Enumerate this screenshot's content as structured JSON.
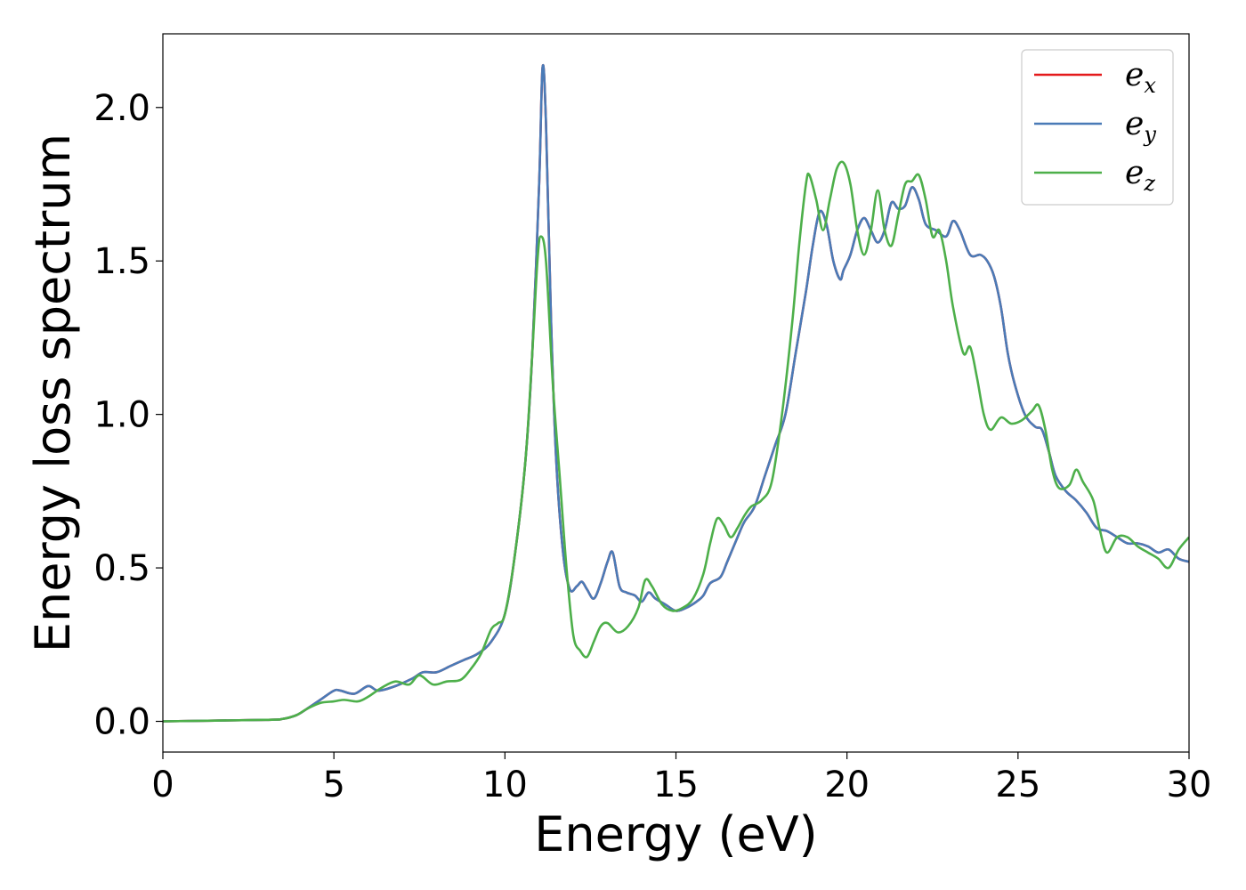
{
  "chart_data": {
    "type": "line",
    "title": "",
    "xlabel": "Energy (eV)",
    "ylabel": "Energy loss spectrum",
    "xlim": [
      0,
      30
    ],
    "ylim": [
      -0.1,
      2.24
    ],
    "xticks": [
      0,
      5,
      10,
      15,
      20,
      25,
      30
    ],
    "xtick_labels": [
      "0",
      "5",
      "10",
      "15",
      "20",
      "25",
      "30"
    ],
    "yticks": [
      0.0,
      0.5,
      1.0,
      1.5,
      2.0
    ],
    "ytick_labels": [
      "0.0",
      "0.5",
      "1.0",
      "1.5",
      "2.0"
    ],
    "grid": false,
    "legend_position": "top-right",
    "series": [
      {
        "name": "e_x",
        "label_main": "e",
        "label_sub": "x",
        "color": "#e41a1c",
        "x": [
          0,
          3.0,
          3.5,
          3.9,
          4.2,
          4.6,
          5.0,
          5.2,
          5.6,
          6.0,
          6.3,
          6.8,
          7.3,
          7.6,
          8.0,
          8.4,
          8.8,
          9.2,
          9.6,
          10.0,
          10.3,
          10.6,
          10.8,
          11.0,
          11.1,
          11.2,
          11.35,
          11.5,
          11.7,
          11.9,
          12.1,
          12.25,
          12.4,
          12.6,
          12.8,
          13.0,
          13.15,
          13.35,
          13.55,
          13.8,
          14.0,
          14.2,
          14.4,
          14.7,
          15.0,
          15.3,
          15.6,
          15.8,
          16.0,
          16.3,
          16.5,
          16.8,
          17.0,
          17.3,
          17.6,
          17.9,
          18.2,
          18.5,
          18.8,
          19.0,
          19.2,
          19.4,
          19.6,
          19.8,
          19.9,
          20.1,
          20.3,
          20.5,
          20.7,
          20.9,
          21.1,
          21.3,
          21.5,
          21.7,
          21.9,
          22.1,
          22.3,
          22.6,
          22.9,
          23.1,
          23.3,
          23.6,
          23.9,
          24.1,
          24.3,
          24.5,
          24.7,
          24.9,
          25.2,
          25.5,
          25.7,
          25.9,
          26.1,
          26.4,
          26.7,
          27.0,
          27.3,
          27.6,
          27.9,
          28.2,
          28.5,
          28.8,
          29.1,
          29.4,
          29.7,
          30.0
        ],
        "y": [
          0.0,
          0.005,
          0.008,
          0.02,
          0.04,
          0.07,
          0.1,
          0.1,
          0.09,
          0.115,
          0.1,
          0.115,
          0.14,
          0.16,
          0.16,
          0.18,
          0.2,
          0.22,
          0.26,
          0.35,
          0.55,
          0.85,
          1.2,
          1.75,
          2.13,
          1.95,
          1.3,
          0.85,
          0.55,
          0.43,
          0.44,
          0.455,
          0.43,
          0.4,
          0.45,
          0.52,
          0.55,
          0.44,
          0.42,
          0.41,
          0.39,
          0.42,
          0.4,
          0.38,
          0.36,
          0.37,
          0.39,
          0.41,
          0.45,
          0.47,
          0.52,
          0.6,
          0.65,
          0.7,
          0.8,
          0.9,
          1.0,
          1.2,
          1.4,
          1.55,
          1.66,
          1.62,
          1.5,
          1.44,
          1.47,
          1.52,
          1.6,
          1.64,
          1.6,
          1.56,
          1.6,
          1.69,
          1.67,
          1.68,
          1.74,
          1.7,
          1.62,
          1.6,
          1.58,
          1.63,
          1.6,
          1.52,
          1.52,
          1.5,
          1.45,
          1.35,
          1.2,
          1.1,
          1.0,
          0.96,
          0.95,
          0.88,
          0.8,
          0.75,
          0.72,
          0.68,
          0.63,
          0.62,
          0.6,
          0.58,
          0.58,
          0.57,
          0.55,
          0.56,
          0.53,
          0.52
        ]
      },
      {
        "name": "e_y",
        "label_main": "e",
        "label_sub": "y",
        "color": "#4a7bb7",
        "x": [
          0,
          3.0,
          3.5,
          3.9,
          4.2,
          4.6,
          5.0,
          5.2,
          5.6,
          6.0,
          6.3,
          6.8,
          7.3,
          7.6,
          8.0,
          8.4,
          8.8,
          9.2,
          9.6,
          10.0,
          10.3,
          10.6,
          10.8,
          11.0,
          11.1,
          11.2,
          11.35,
          11.5,
          11.7,
          11.9,
          12.1,
          12.25,
          12.4,
          12.6,
          12.8,
          13.0,
          13.15,
          13.35,
          13.55,
          13.8,
          14.0,
          14.2,
          14.4,
          14.7,
          15.0,
          15.3,
          15.6,
          15.8,
          16.0,
          16.3,
          16.5,
          16.8,
          17.0,
          17.3,
          17.6,
          17.9,
          18.2,
          18.5,
          18.8,
          19.0,
          19.2,
          19.4,
          19.6,
          19.8,
          19.9,
          20.1,
          20.3,
          20.5,
          20.7,
          20.9,
          21.1,
          21.3,
          21.5,
          21.7,
          21.9,
          22.1,
          22.3,
          22.6,
          22.9,
          23.1,
          23.3,
          23.6,
          23.9,
          24.1,
          24.3,
          24.5,
          24.7,
          24.9,
          25.2,
          25.5,
          25.7,
          25.9,
          26.1,
          26.4,
          26.7,
          27.0,
          27.3,
          27.6,
          27.9,
          28.2,
          28.5,
          28.8,
          29.1,
          29.4,
          29.7,
          30.0
        ],
        "y": [
          0.0,
          0.005,
          0.008,
          0.02,
          0.04,
          0.07,
          0.1,
          0.1,
          0.09,
          0.115,
          0.1,
          0.115,
          0.14,
          0.16,
          0.16,
          0.18,
          0.2,
          0.22,
          0.26,
          0.35,
          0.55,
          0.85,
          1.2,
          1.75,
          2.13,
          1.95,
          1.3,
          0.85,
          0.55,
          0.43,
          0.44,
          0.455,
          0.43,
          0.4,
          0.45,
          0.52,
          0.55,
          0.44,
          0.42,
          0.41,
          0.39,
          0.42,
          0.4,
          0.38,
          0.36,
          0.37,
          0.39,
          0.41,
          0.45,
          0.47,
          0.52,
          0.6,
          0.65,
          0.7,
          0.8,
          0.9,
          1.0,
          1.2,
          1.4,
          1.55,
          1.66,
          1.62,
          1.5,
          1.44,
          1.47,
          1.52,
          1.6,
          1.64,
          1.6,
          1.56,
          1.6,
          1.69,
          1.67,
          1.68,
          1.74,
          1.7,
          1.62,
          1.6,
          1.58,
          1.63,
          1.6,
          1.52,
          1.52,
          1.5,
          1.45,
          1.35,
          1.2,
          1.1,
          1.0,
          0.96,
          0.95,
          0.88,
          0.8,
          0.75,
          0.72,
          0.68,
          0.63,
          0.62,
          0.6,
          0.58,
          0.58,
          0.57,
          0.55,
          0.56,
          0.53,
          0.52
        ]
      },
      {
        "name": "e_z",
        "label_main": "e",
        "label_sub": "z",
        "color": "#4daf4a",
        "x": [
          0,
          3.0,
          3.5,
          3.9,
          4.2,
          4.6,
          5.0,
          5.3,
          5.7,
          6.0,
          6.4,
          6.8,
          7.2,
          7.5,
          7.9,
          8.3,
          8.7,
          9.0,
          9.3,
          9.6,
          9.8,
          10.0,
          10.3,
          10.6,
          10.8,
          10.95,
          11.05,
          11.2,
          11.4,
          11.6,
          11.8,
          12.0,
          12.2,
          12.4,
          12.6,
          12.8,
          13.0,
          13.3,
          13.6,
          13.9,
          14.1,
          14.3,
          14.6,
          14.9,
          15.2,
          15.5,
          15.8,
          16.0,
          16.2,
          16.4,
          16.6,
          16.8,
          17.0,
          17.2,
          17.5,
          17.8,
          18.1,
          18.4,
          18.6,
          18.8,
          18.9,
          19.1,
          19.3,
          19.5,
          19.7,
          19.9,
          20.1,
          20.3,
          20.5,
          20.7,
          20.9,
          21.1,
          21.3,
          21.5,
          21.7,
          21.9,
          22.1,
          22.3,
          22.5,
          22.7,
          22.9,
          23.1,
          23.4,
          23.6,
          23.8,
          24.0,
          24.2,
          24.5,
          24.8,
          25.1,
          25.4,
          25.6,
          25.8,
          26.0,
          26.2,
          26.5,
          26.7,
          26.9,
          27.2,
          27.4,
          27.6,
          27.9,
          28.2,
          28.5,
          28.8,
          29.1,
          29.4,
          29.7,
          30.0
        ],
        "y": [
          0.0,
          0.005,
          0.008,
          0.02,
          0.04,
          0.06,
          0.065,
          0.07,
          0.065,
          0.08,
          0.11,
          0.13,
          0.12,
          0.15,
          0.12,
          0.13,
          0.135,
          0.17,
          0.22,
          0.3,
          0.32,
          0.35,
          0.55,
          0.85,
          1.2,
          1.5,
          1.58,
          1.5,
          1.1,
          0.8,
          0.5,
          0.28,
          0.23,
          0.21,
          0.26,
          0.31,
          0.32,
          0.29,
          0.31,
          0.37,
          0.46,
          0.44,
          0.38,
          0.36,
          0.37,
          0.4,
          0.48,
          0.58,
          0.66,
          0.64,
          0.6,
          0.63,
          0.67,
          0.7,
          0.72,
          0.78,
          1.0,
          1.3,
          1.55,
          1.75,
          1.78,
          1.7,
          1.6,
          1.7,
          1.8,
          1.82,
          1.75,
          1.6,
          1.52,
          1.6,
          1.73,
          1.6,
          1.55,
          1.65,
          1.75,
          1.76,
          1.78,
          1.7,
          1.58,
          1.6,
          1.5,
          1.35,
          1.2,
          1.22,
          1.12,
          1.0,
          0.95,
          0.99,
          0.97,
          0.98,
          1.01,
          1.03,
          0.95,
          0.82,
          0.76,
          0.77,
          0.82,
          0.78,
          0.72,
          0.62,
          0.55,
          0.6,
          0.6,
          0.57,
          0.55,
          0.53,
          0.5,
          0.56,
          0.6
        ]
      }
    ]
  }
}
